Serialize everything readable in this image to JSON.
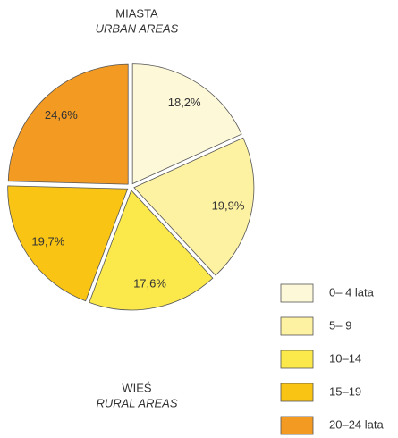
{
  "chart_data": {
    "type": "pie",
    "title": "MIASTA",
    "subtitle": "URBAN AREAS",
    "annotations": [
      "WIEŚ",
      "RURAL AREAS"
    ],
    "categories": [
      "0– 4 lata",
      "5– 9",
      "10–14",
      "15–19",
      "20–24 lata"
    ],
    "values": [
      18.2,
      19.9,
      17.6,
      19.7,
      24.6
    ],
    "value_labels": [
      "18,2%",
      "19,9%",
      "17,6%",
      "19,7%",
      "24,6%"
    ],
    "colors": [
      "#fdf8d8",
      "#fdf1a2",
      "#fbe94c",
      "#f9c414",
      "#f29a22"
    ],
    "legend": "bottom-right"
  }
}
